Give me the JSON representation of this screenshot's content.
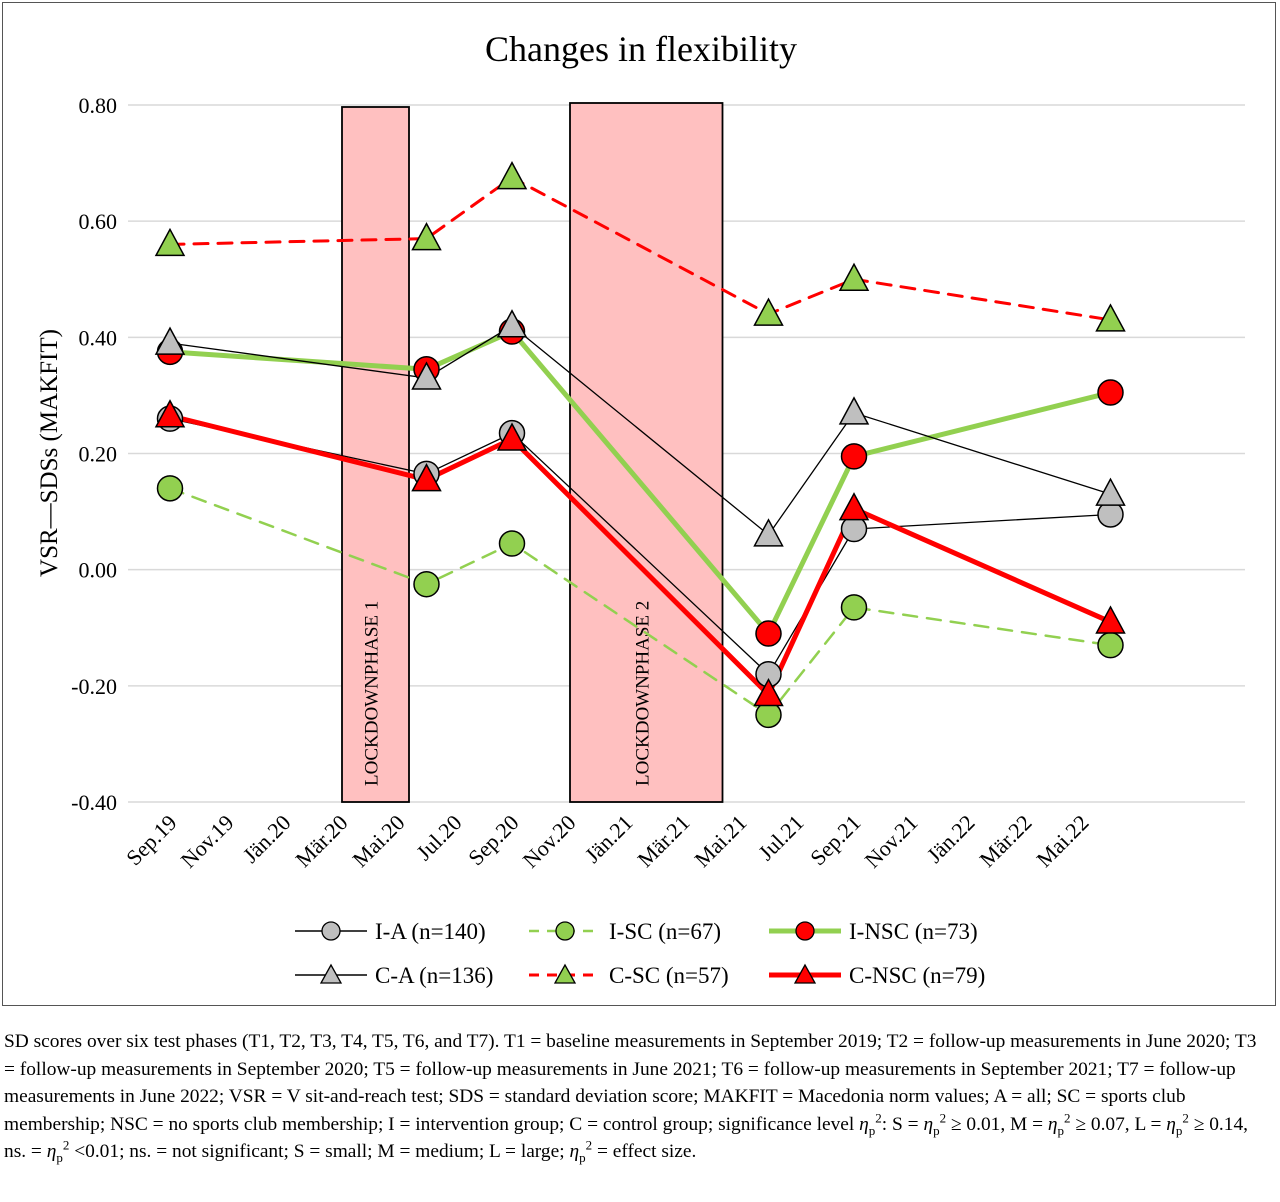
{
  "chart_data": {
    "type": "line",
    "title": "Changes in flexibility",
    "ylabel": "VSR—SDSs (MAKFIT)",
    "xlabel": "",
    "ylim": [
      -0.4,
      0.8
    ],
    "yticks": [
      "0.80",
      "0.60",
      "0.40",
      "0.20",
      "0.00",
      "-0.20",
      "-0.40"
    ],
    "ytick_values": [
      0.8,
      0.6,
      0.4,
      0.2,
      0.0,
      -0.2,
      -0.4
    ],
    "xticks": [
      "Sep.19",
      "Nov.19",
      "Jän.20",
      "Mär.20",
      "Mai.20",
      "Jul.20",
      "Sep.20",
      "Nov.20",
      "Jän.21",
      "Mär.21",
      "Mai.21",
      "Jul.21",
      "Sep.21",
      "Nov.21",
      "Jän.22",
      "Mär.22",
      "Mai.22"
    ],
    "x": [
      "2019-09",
      "2020-06",
      "2020-09",
      "2021-06",
      "2021-09",
      "2022-06"
    ],
    "grid": "horizontal",
    "legend_position": "bottom",
    "shaded_regions": [
      {
        "label": "LOCKDOWNPHASE 1",
        "start": "2020-03",
        "end": "2020-05",
        "color": "#ffc0c0"
      },
      {
        "label": "LOCKDOWNPHASE 2",
        "start": "2020-11",
        "end": "2021-04",
        "color": "#ffc0c0"
      }
    ],
    "series": [
      {
        "name": "I-A (n=140)",
        "values": [
          0.26,
          0.165,
          0.235,
          -0.18,
          0.07,
          0.095
        ],
        "line_color": "#000000",
        "line_style": "solid",
        "line_width": 1.3,
        "marker": "circle",
        "marker_fill": "#bfbfbf"
      },
      {
        "name": "I-SC (n=67)",
        "values": [
          0.14,
          -0.025,
          0.045,
          -0.25,
          -0.065,
          -0.13
        ],
        "line_color": "#92d050",
        "line_style": "dashed",
        "line_width": 2.5,
        "marker": "circle",
        "marker_fill": "#92d050"
      },
      {
        "name": "I-NSC (n=73)",
        "values": [
          0.375,
          0.345,
          0.41,
          -0.11,
          0.195,
          0.305
        ],
        "line_color": "#92d050",
        "line_style": "solid",
        "line_width": 5,
        "marker": "circle",
        "marker_fill": "#ff0000"
      },
      {
        "name": "C-A (n=136)",
        "values": [
          0.39,
          0.33,
          0.42,
          0.06,
          0.27,
          0.13
        ],
        "line_color": "#000000",
        "line_style": "solid",
        "line_width": 1.3,
        "marker": "triangle",
        "marker_fill": "#bfbfbf"
      },
      {
        "name": "C-SC (n=57)",
        "values": [
          0.56,
          0.57,
          0.675,
          0.44,
          0.5,
          0.43
        ],
        "line_color": "#ff0000",
        "line_style": "dashed",
        "line_width": 3,
        "marker": "triangle",
        "marker_fill": "#92d050"
      },
      {
        "name": "C-NSC (n=79)",
        "values": [
          0.265,
          0.155,
          0.225,
          -0.215,
          0.105,
          -0.09
        ],
        "line_color": "#ff0000",
        "line_style": "solid",
        "line_width": 5,
        "marker": "triangle",
        "marker_fill": "#ff0000"
      }
    ]
  },
  "caption": {
    "p1": "SD scores over six test phases (T1, T2, T3, T4, T5, T6, and T7). T1 = baseline measurements in September 2019; T2 = follow-up measurements in June 2020; T3 = follow-up measurements in September 2020; T5 = follow-up measurements in June 2021; T6 = follow-up measurements in September 2021; T7 = follow-up measurements in June 2022; VSR = V sit-and-reach test; SDS = standard deviation score; MAKFIT = Macedonia norm values; A = all; SC = sports club membership; NSC = no sports club membership; I = intervention group; C = control group; significance level ",
    "eta": "η",
    "sub_p": "p",
    "sup_2": "2",
    "sig_intro": ": S = ",
    "s_rel": " ≥ 0.01, M = ",
    "m_rel": " ≥ 0.07, L = ",
    "l_rel": " ≥ 0.14, ns. = ",
    "ns_rel": " <0.01; ns. = not significant; S = small; M = medium; L = large; ",
    "end": " = effect size."
  }
}
